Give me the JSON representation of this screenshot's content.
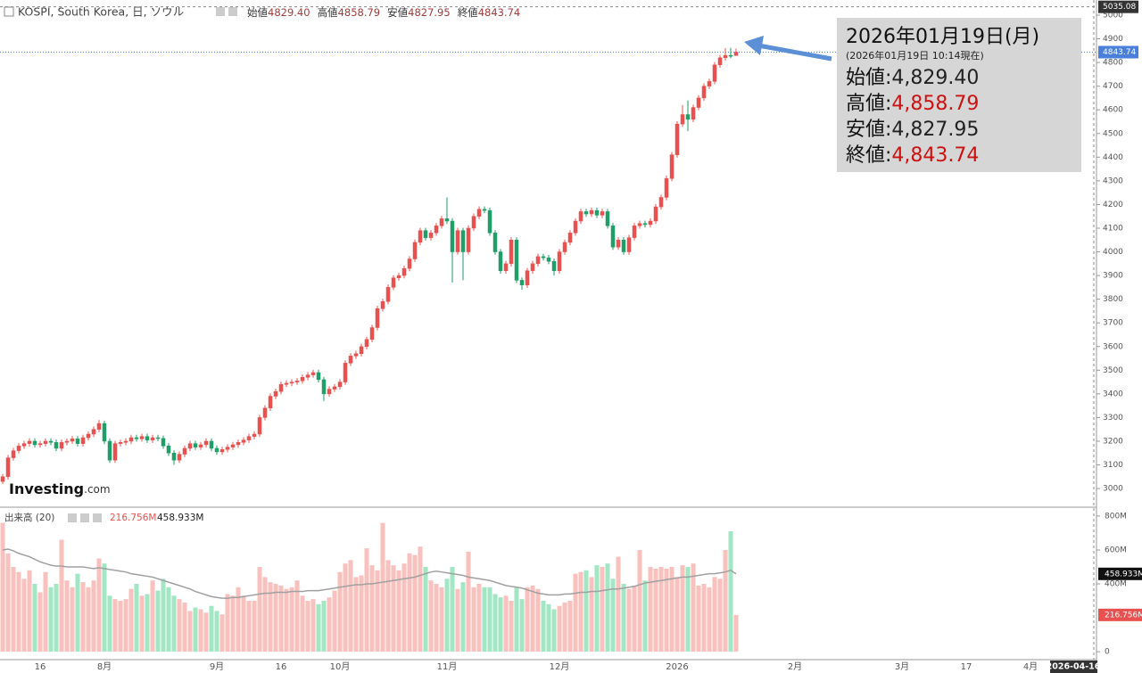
{
  "chart_data": {
    "type": "candlestick",
    "title": "KOSPI, South Korea, 日, ソウル",
    "legend": [
      {
        "label": "始値",
        "value": "4829.40"
      },
      {
        "label": "高値",
        "value": "4858.79"
      },
      {
        "label": "安値",
        "value": "4827.95"
      },
      {
        "label": "終値",
        "value": "4843.74"
      }
    ],
    "up_color": "#e8514f",
    "down_color": "#1f9e68",
    "price_line_color": "#4a7fdc",
    "ylim": [
      2925,
      5064
    ],
    "yticks": [
      3000,
      3100,
      3200,
      3300,
      3400,
      3500,
      3600,
      3700,
      3800,
      3900,
      4000,
      4100,
      4200,
      4300,
      4400,
      4500,
      4600,
      4700,
      4800,
      4900,
      5000
    ],
    "categories": [
      null,
      null,
      null,
      null,
      null,
      null,
      null,
      "16",
      null,
      null,
      null,
      null,
      null,
      null,
      null,
      null,
      null,
      null,
      null,
      "8月",
      null,
      null,
      null,
      null,
      null,
      null,
      null,
      null,
      null,
      null,
      null,
      null,
      null,
      null,
      null,
      null,
      null,
      null,
      null,
      null,
      "9月",
      null,
      null,
      null,
      null,
      null,
      null,
      null,
      null,
      null,
      null,
      null,
      "16",
      null,
      null,
      null,
      null,
      null,
      null,
      null,
      null,
      null,
      null,
      "10月",
      null,
      null,
      null,
      null,
      null,
      null,
      null,
      null,
      null,
      null,
      null,
      null,
      null,
      null,
      null,
      null,
      null,
      null,
      null,
      "11月",
      null,
      null,
      null,
      null,
      null,
      null,
      null,
      null,
      null,
      null,
      null,
      null,
      null,
      null,
      null,
      null,
      null,
      null,
      null,
      null,
      "12月",
      null,
      null,
      null,
      null,
      null,
      null,
      null,
      null,
      null,
      null,
      null,
      null,
      null,
      null,
      null,
      null,
      null,
      null,
      null,
      null,
      null,
      "2026",
      null,
      null,
      null,
      null,
      null,
      null,
      null,
      null,
      null,
      null,
      null,
      null,
      null,
      null,
      null,
      null,
      null,
      null,
      null,
      null,
      null,
      "2月",
      null,
      null,
      null,
      null,
      null,
      null,
      null,
      null,
      null,
      null,
      null,
      null,
      null,
      null,
      null,
      null,
      null,
      null,
      null,
      "3月",
      null,
      null,
      null,
      null,
      null,
      null,
      null,
      null,
      null,
      null,
      null,
      "17",
      null,
      null,
      null,
      null,
      null,
      null,
      null,
      null,
      null,
      null,
      null,
      "4月"
    ],
    "open": [
      3030,
      3050,
      3130,
      3160,
      3180,
      3190,
      3200,
      3185,
      3190,
      3200,
      3195,
      3170,
      3195,
      3200,
      3210,
      3190,
      3215,
      3230,
      3250,
      3275,
      3200,
      3120,
      3190,
      3195,
      3200,
      3215,
      3210,
      3220,
      3205,
      3215,
      3212,
      3180,
      3150,
      3120,
      3145,
      3170,
      3190,
      3175,
      3185,
      3200,
      3170,
      3155,
      3165,
      3175,
      3185,
      3195,
      3205,
      3220,
      3230,
      3300,
      3340,
      3390,
      3410,
      3440,
      3445,
      3450,
      3455,
      3470,
      3480,
      3490,
      3460,
      3400,
      3420,
      3430,
      3450,
      3530,
      3560,
      3570,
      3600,
      3630,
      3680,
      3760,
      3790,
      3850,
      3890,
      3900,
      3930,
      3970,
      4040,
      4090,
      4060,
      4080,
      4110,
      4140,
      4130,
      4000,
      4090,
      4000,
      4100,
      4150,
      4180,
      4175,
      4080,
      4000,
      3920,
      3950,
      4050,
      3880,
      3860,
      3920,
      3950,
      3980,
      3975,
      3960,
      3920,
      4000,
      4040,
      4080,
      4130,
      4170,
      4160,
      4175,
      4155,
      4170,
      4110,
      4020,
      4050,
      4000,
      4060,
      4110,
      4120,
      4115,
      4130,
      4190,
      4230,
      4310,
      4410,
      4540,
      4580,
      4560,
      4610,
      4650,
      4700,
      4720,
      4790,
      4820,
      4830,
      4829.4,
      null,
      null,
      null,
      null,
      null,
      null,
      null,
      null,
      null,
      null,
      null,
      null,
      null,
      null,
      null,
      null,
      null,
      null,
      null,
      null,
      null,
      null,
      null,
      null,
      null,
      null,
      null,
      null,
      null,
      null,
      null,
      null,
      null,
      null,
      null,
      null,
      null,
      null,
      null,
      null,
      null,
      null,
      null,
      null,
      null,
      null,
      null,
      null,
      null,
      null,
      null,
      null,
      null,
      null,
      null
    ],
    "high": [
      3062,
      3142,
      3172,
      3192,
      3202,
      3212,
      3212,
      3202,
      3212,
      3212,
      3207,
      3207,
      3212,
      3222,
      3222,
      3227,
      3242,
      3262,
      3290,
      3287,
      3212,
      3202,
      3207,
      3212,
      3227,
      3227,
      3232,
      3232,
      3227,
      3227,
      3224,
      3192,
      3162,
      3157,
      3182,
      3202,
      3202,
      3197,
      3212,
      3212,
      3182,
      3177,
      3187,
      3197,
      3207,
      3217,
      3232,
      3242,
      3312,
      3352,
      3402,
      3422,
      3452,
      3457,
      3462,
      3467,
      3482,
      3492,
      3502,
      3502,
      3472,
      3432,
      3442,
      3462,
      3542,
      3572,
      3582,
      3612,
      3642,
      3692,
      3772,
      3802,
      3862,
      3902,
      3912,
      3942,
      3982,
      4052,
      4102,
      4102,
      4092,
      4122,
      4152,
      4230,
      4142,
      4102,
      4102,
      4112,
      4162,
      4192,
      4192,
      4187,
      4092,
      4012,
      3962,
      4062,
      4062,
      3892,
      3932,
      3962,
      3992,
      3992,
      3987,
      3972,
      4012,
      4052,
      4092,
      4142,
      4182,
      4182,
      4187,
      4187,
      4182,
      4182,
      4122,
      4062,
      4062,
      4072,
      4122,
      4132,
      4132,
      4142,
      4202,
      4242,
      4322,
      4422,
      4552,
      4620,
      4640,
      4622,
      4662,
      4712,
      4732,
      4802,
      4832,
      4860,
      4862,
      4858.79,
      null,
      null,
      null,
      null,
      null,
      null,
      null,
      null,
      null,
      null,
      null,
      null,
      null,
      null,
      null,
      null,
      null,
      null,
      null,
      null,
      null,
      null,
      null,
      null,
      null,
      null,
      null,
      null,
      null,
      null,
      null,
      null,
      null,
      null,
      null,
      null,
      null,
      null,
      null,
      null,
      null,
      null,
      null,
      null,
      null,
      null,
      null,
      null,
      null,
      null,
      null,
      null,
      null,
      null,
      null
    ],
    "low": [
      3018,
      3038,
      3118,
      3148,
      3168,
      3178,
      3173,
      3173,
      3178,
      3183,
      3158,
      3158,
      3183,
      3188,
      3178,
      3178,
      3203,
      3218,
      3238,
      3188,
      3108,
      3108,
      3178,
      3183,
      3188,
      3198,
      3198,
      3193,
      3193,
      3200,
      3168,
      3138,
      3100,
      3108,
      3133,
      3158,
      3163,
      3163,
      3173,
      3158,
      3143,
      3143,
      3153,
      3163,
      3173,
      3183,
      3193,
      3208,
      3218,
      3288,
      3328,
      3378,
      3398,
      3428,
      3433,
      3438,
      3443,
      3458,
      3468,
      3448,
      3370,
      3388,
      3408,
      3418,
      3438,
      3518,
      3548,
      3558,
      3588,
      3618,
      3668,
      3748,
      3778,
      3838,
      3878,
      3888,
      3918,
      3958,
      4028,
      4048,
      4048,
      4068,
      4098,
      4118,
      3870,
      3988,
      3880,
      3988,
      4088,
      4138,
      4163,
      4068,
      3988,
      3908,
      3908,
      3938,
      3868,
      3840,
      3848,
      3908,
      3938,
      3963,
      3948,
      3900,
      3908,
      3988,
      4028,
      4068,
      4118,
      4148,
      4148,
      4143,
      4143,
      4098,
      4008,
      4008,
      3988,
      3988,
      4048,
      4098,
      4103,
      4103,
      4118,
      4178,
      4218,
      4298,
      4398,
      4528,
      4510,
      4548,
      4598,
      4638,
      4688,
      4708,
      4778,
      4808,
      4818,
      4827.95,
      null,
      null,
      null,
      null,
      null,
      null,
      null,
      null,
      null,
      null,
      null,
      null,
      null,
      null,
      null,
      null,
      null,
      null,
      null,
      null,
      null,
      null,
      null,
      null,
      null,
      null,
      null,
      null,
      null,
      null,
      null,
      null,
      null,
      null,
      null,
      null,
      null,
      null,
      null,
      null,
      null,
      null,
      null,
      null,
      null,
      null,
      null,
      null,
      null,
      null,
      null,
      null,
      null,
      null,
      null
    ],
    "close": [
      3050,
      3130,
      3160,
      3180,
      3190,
      3200,
      3185,
      3190,
      3200,
      3195,
      3170,
      3195,
      3200,
      3210,
      3190,
      3215,
      3230,
      3250,
      3275,
      3200,
      3120,
      3190,
      3195,
      3200,
      3215,
      3210,
      3220,
      3205,
      3215,
      3212,
      3180,
      3150,
      3120,
      3145,
      3170,
      3190,
      3175,
      3185,
      3200,
      3170,
      3155,
      3165,
      3175,
      3185,
      3195,
      3205,
      3220,
      3230,
      3300,
      3340,
      3390,
      3410,
      3440,
      3445,
      3450,
      3455,
      3470,
      3480,
      3490,
      3460,
      3400,
      3420,
      3430,
      3450,
      3530,
      3560,
      3570,
      3600,
      3630,
      3680,
      3760,
      3790,
      3850,
      3890,
      3900,
      3930,
      3970,
      4040,
      4090,
      4060,
      4080,
      4110,
      4140,
      4130,
      4000,
      4090,
      4000,
      4100,
      4150,
      4180,
      4175,
      4080,
      4000,
      3920,
      3950,
      4050,
      3880,
      3860,
      3920,
      3950,
      3980,
      3975,
      3960,
      3920,
      4000,
      4040,
      4080,
      4130,
      4170,
      4160,
      4175,
      4155,
      4170,
      4110,
      4020,
      4050,
      4000,
      4060,
      4110,
      4120,
      4115,
      4130,
      4190,
      4230,
      4310,
      4410,
      4540,
      4580,
      4560,
      4610,
      4650,
      4700,
      4720,
      4790,
      4820,
      4830,
      4829.4,
      4843.74,
      null,
      null,
      null,
      null,
      null,
      null,
      null,
      null,
      null,
      null,
      null,
      null,
      null,
      null,
      null,
      null,
      null,
      null,
      null,
      null,
      null,
      null,
      null,
      null,
      null,
      null,
      null,
      null,
      null,
      null,
      null,
      null,
      null,
      null,
      null,
      null,
      null,
      null,
      null,
      null,
      null,
      null,
      null,
      null,
      null,
      null,
      null,
      null,
      null,
      null,
      null,
      null,
      null,
      null,
      null
    ],
    "crosshair": {
      "x_label": "2026-04-16",
      "y": 5035.08
    },
    "volume": {
      "title": "出来高 (20)",
      "value_text": "216.756M",
      "ma_text": "458.933M",
      "up_color": "#f9c0bd",
      "down_color": "#a2e6c4",
      "ma_color": "#a0a0a0",
      "value_box_color": "#e8514f",
      "ma_box_color": "#111111",
      "ylim": [
        -47,
        847
      ],
      "yticks": [
        0,
        {
          "value": 400,
          "label": "400M"
        },
        {
          "value": 600,
          "label": "600M"
        },
        {
          "value": 800,
          "label": "800M"
        }
      ],
      "values": [
        760,
        580,
        500,
        470,
        430,
        480,
        400,
        350,
        470,
        380,
        400,
        660,
        420,
        380,
        460,
        410,
        380,
        420,
        550,
        520,
        330,
        310,
        300,
        310,
        370,
        400,
        330,
        340,
        420,
        360,
        430,
        380,
        330,
        310,
        290,
        240,
        260,
        250,
        230,
        270,
        240,
        220,
        340,
        330,
        380,
        330,
        300,
        300,
        500,
        440,
        410,
        400,
        390,
        370,
        380,
        420,
        330,
        300,
        310,
        280,
        300,
        320,
        360,
        470,
        520,
        540,
        440,
        450,
        610,
        510,
        480,
        760,
        540,
        510,
        480,
        520,
        580,
        570,
        620,
        500,
        420,
        400,
        380,
        430,
        500,
        370,
        410,
        590,
        380,
        400,
        380,
        380,
        340,
        320,
        330,
        300,
        380,
        310,
        380,
        390,
        370,
        300,
        280,
        250,
        270,
        290,
        300,
        460,
        470,
        480,
        440,
        510,
        500,
        520,
        430,
        560,
        400,
        370,
        390,
        600,
        420,
        500,
        490,
        500,
        490,
        500,
        440,
        510,
        500,
        520,
        390,
        400,
        380,
        440,
        430,
        600,
        710,
        216.756,
        null,
        null,
        null,
        null,
        null,
        null,
        null,
        null,
        null,
        null,
        null,
        null,
        null,
        null,
        null,
        null,
        null,
        null,
        null,
        null,
        null,
        null,
        null,
        null,
        null,
        null,
        null,
        null,
        null,
        null,
        null,
        null,
        null,
        null,
        null,
        null,
        null,
        null,
        null,
        null,
        null,
        null,
        null,
        null,
        null,
        null,
        null,
        null,
        null,
        null,
        null,
        null,
        null,
        null,
        null
      ],
      "ma_values": [
        600,
        605,
        595,
        580,
        570,
        560,
        545,
        530,
        520,
        510,
        505,
        505,
        500,
        500,
        500,
        500,
        495,
        490,
        495,
        490,
        485,
        480,
        475,
        470,
        460,
        455,
        450,
        445,
        440,
        430,
        420,
        410,
        400,
        390,
        380,
        370,
        355,
        345,
        335,
        325,
        320,
        315,
        315,
        320,
        320,
        325,
        330,
        335,
        340,
        345,
        345,
        350,
        350,
        350,
        355,
        355,
        355,
        360,
        360,
        360,
        365,
        370,
        375,
        380,
        385,
        390,
        395,
        395,
        400,
        400,
        405,
        410,
        415,
        420,
        425,
        430,
        435,
        440,
        450,
        460,
        470,
        475,
        470,
        465,
        460,
        455,
        450,
        440,
        435,
        430,
        425,
        420,
        410,
        400,
        390,
        385,
        380,
        375,
        365,
        355,
        345,
        340,
        335,
        335,
        335,
        340,
        340,
        345,
        350,
        350,
        355,
        355,
        360,
        365,
        370,
        370,
        375,
        380,
        385,
        395,
        405,
        410,
        415,
        420,
        425,
        430,
        435,
        440,
        440,
        445,
        450,
        455,
        460,
        460,
        465,
        470,
        480,
        458.933,
        null,
        null,
        null,
        null,
        null,
        null,
        null,
        null,
        null,
        null,
        null,
        null,
        null,
        null,
        null,
        null,
        null,
        null,
        null,
        null,
        null,
        null,
        null,
        null,
        null,
        null,
        null,
        null,
        null,
        null,
        null,
        null,
        null,
        null,
        null,
        null,
        null,
        null,
        null,
        null,
        null,
        null,
        null,
        null,
        null,
        null,
        null,
        null,
        null,
        null,
        null,
        null,
        null,
        null,
        null
      ]
    },
    "info_box": {
      "date": "2026年01月19日(月)",
      "as_of": "(2026年01月19日 10:14現在)",
      "rows": [
        {
          "label": "始値:",
          "value": "4,829.40",
          "color": "#222222"
        },
        {
          "label": "高値:",
          "value": "4,858.79",
          "color": "#cc1111"
        },
        {
          "label": "安値:",
          "value": "4,827.95",
          "color": "#222222"
        },
        {
          "label": "終値:",
          "value": "4,843.74",
          "color": "#cc1111"
        }
      ]
    },
    "logo": {
      "name": "Investing",
      "suffix": ".com"
    }
  }
}
